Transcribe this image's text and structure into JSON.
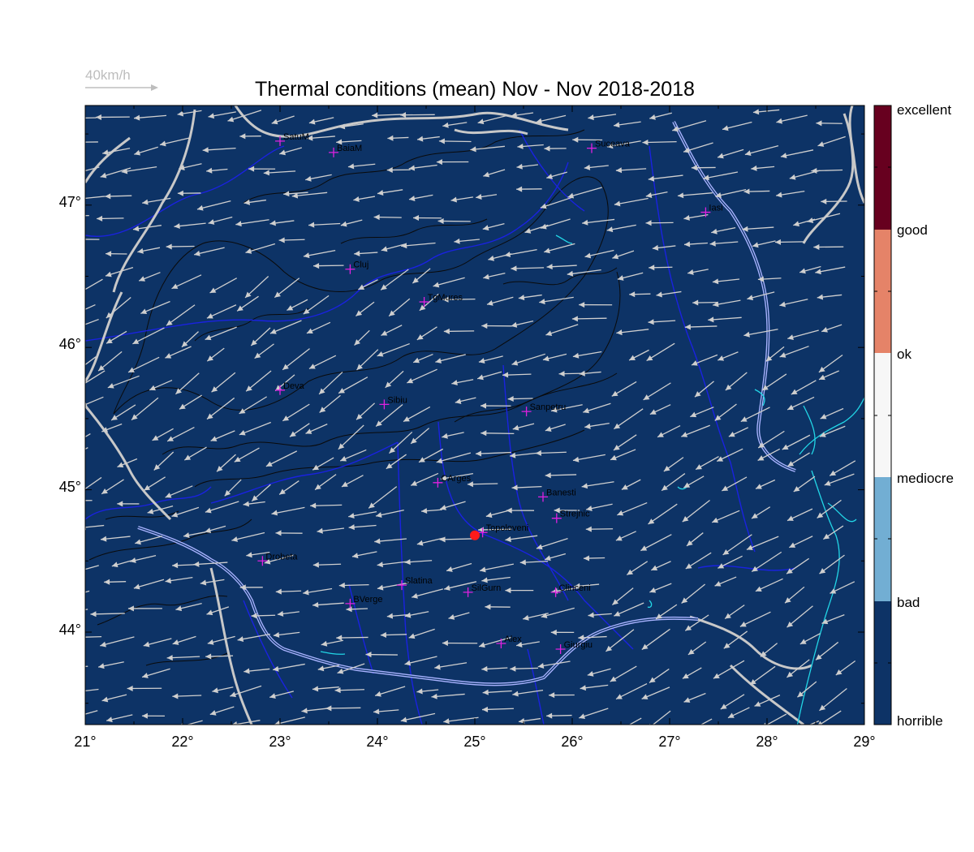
{
  "title": "Thermal conditions (mean) Nov - Nov  2018-2018",
  "scale_label": "40km/h",
  "colors": {
    "map_fill": "#0d3366",
    "rivers": "#1a22e0",
    "borders": "#c8c8c8",
    "danube": "#a9b3ff",
    "lakes": "#22d6e6",
    "contour": "#0a0a0a",
    "wind_arrow": "#cfcfcf",
    "marker": "#e020e0",
    "highlight": "#ff1a1a"
  },
  "axes": {
    "x_ticks": [
      "21°",
      "22°",
      "23°",
      "24°",
      "25°",
      "26°",
      "27°",
      "28°",
      "29°"
    ],
    "y_ticks": [
      "47°",
      "46°",
      "45°",
      "44°"
    ],
    "lon_range": [
      21,
      29
    ],
    "lat_range": [
      43.35,
      47.7
    ]
  },
  "colorbar": {
    "labels": [
      "excellent",
      "good",
      "ok",
      "mediocre",
      "bad",
      "horrible"
    ],
    "colors": [
      "#67001f",
      "#e58368",
      "#f7f7f7",
      "#72aed3",
      "#0d3366"
    ]
  },
  "cities": [
    {
      "name": "SatuM",
      "lon": 23.0,
      "lat": 47.45
    },
    {
      "name": "BaiaM",
      "lon": 23.55,
      "lat": 47.37
    },
    {
      "name": "Suceava",
      "lon": 26.2,
      "lat": 47.4
    },
    {
      "name": "Iasi",
      "lon": 27.37,
      "lat": 46.95
    },
    {
      "name": "Cluj",
      "lon": 23.72,
      "lat": 46.55
    },
    {
      "name": "TgMures",
      "lon": 24.48,
      "lat": 46.32
    },
    {
      "name": "Deva",
      "lon": 23.0,
      "lat": 45.7
    },
    {
      "name": "Sibiu",
      "lon": 24.07,
      "lat": 45.6
    },
    {
      "name": "Sanpetru",
      "lon": 25.53,
      "lat": 45.55
    },
    {
      "name": "CArges",
      "lon": 24.62,
      "lat": 45.05
    },
    {
      "name": "Banesti",
      "lon": 25.7,
      "lat": 44.95
    },
    {
      "name": "Strejnic",
      "lon": 25.84,
      "lat": 44.8
    },
    {
      "name": "Topoloveni",
      "lon": 25.08,
      "lat": 44.7
    },
    {
      "name": "Drobeta",
      "lon": 22.82,
      "lat": 44.5
    },
    {
      "name": "Slatina",
      "lon": 24.25,
      "lat": 44.33
    },
    {
      "name": "SilGurn",
      "lon": 24.93,
      "lat": 44.28
    },
    {
      "name": "Clinceni",
      "lon": 25.83,
      "lat": 44.28
    },
    {
      "name": "BVerge",
      "lon": 23.72,
      "lat": 44.2
    },
    {
      "name": "Alex",
      "lon": 25.27,
      "lat": 43.92
    },
    {
      "name": "Giurgiu",
      "lon": 25.88,
      "lat": 43.88
    }
  ],
  "highlight_station": {
    "name": "Topoloveni",
    "lon": 25.0,
    "lat": 44.68
  }
}
